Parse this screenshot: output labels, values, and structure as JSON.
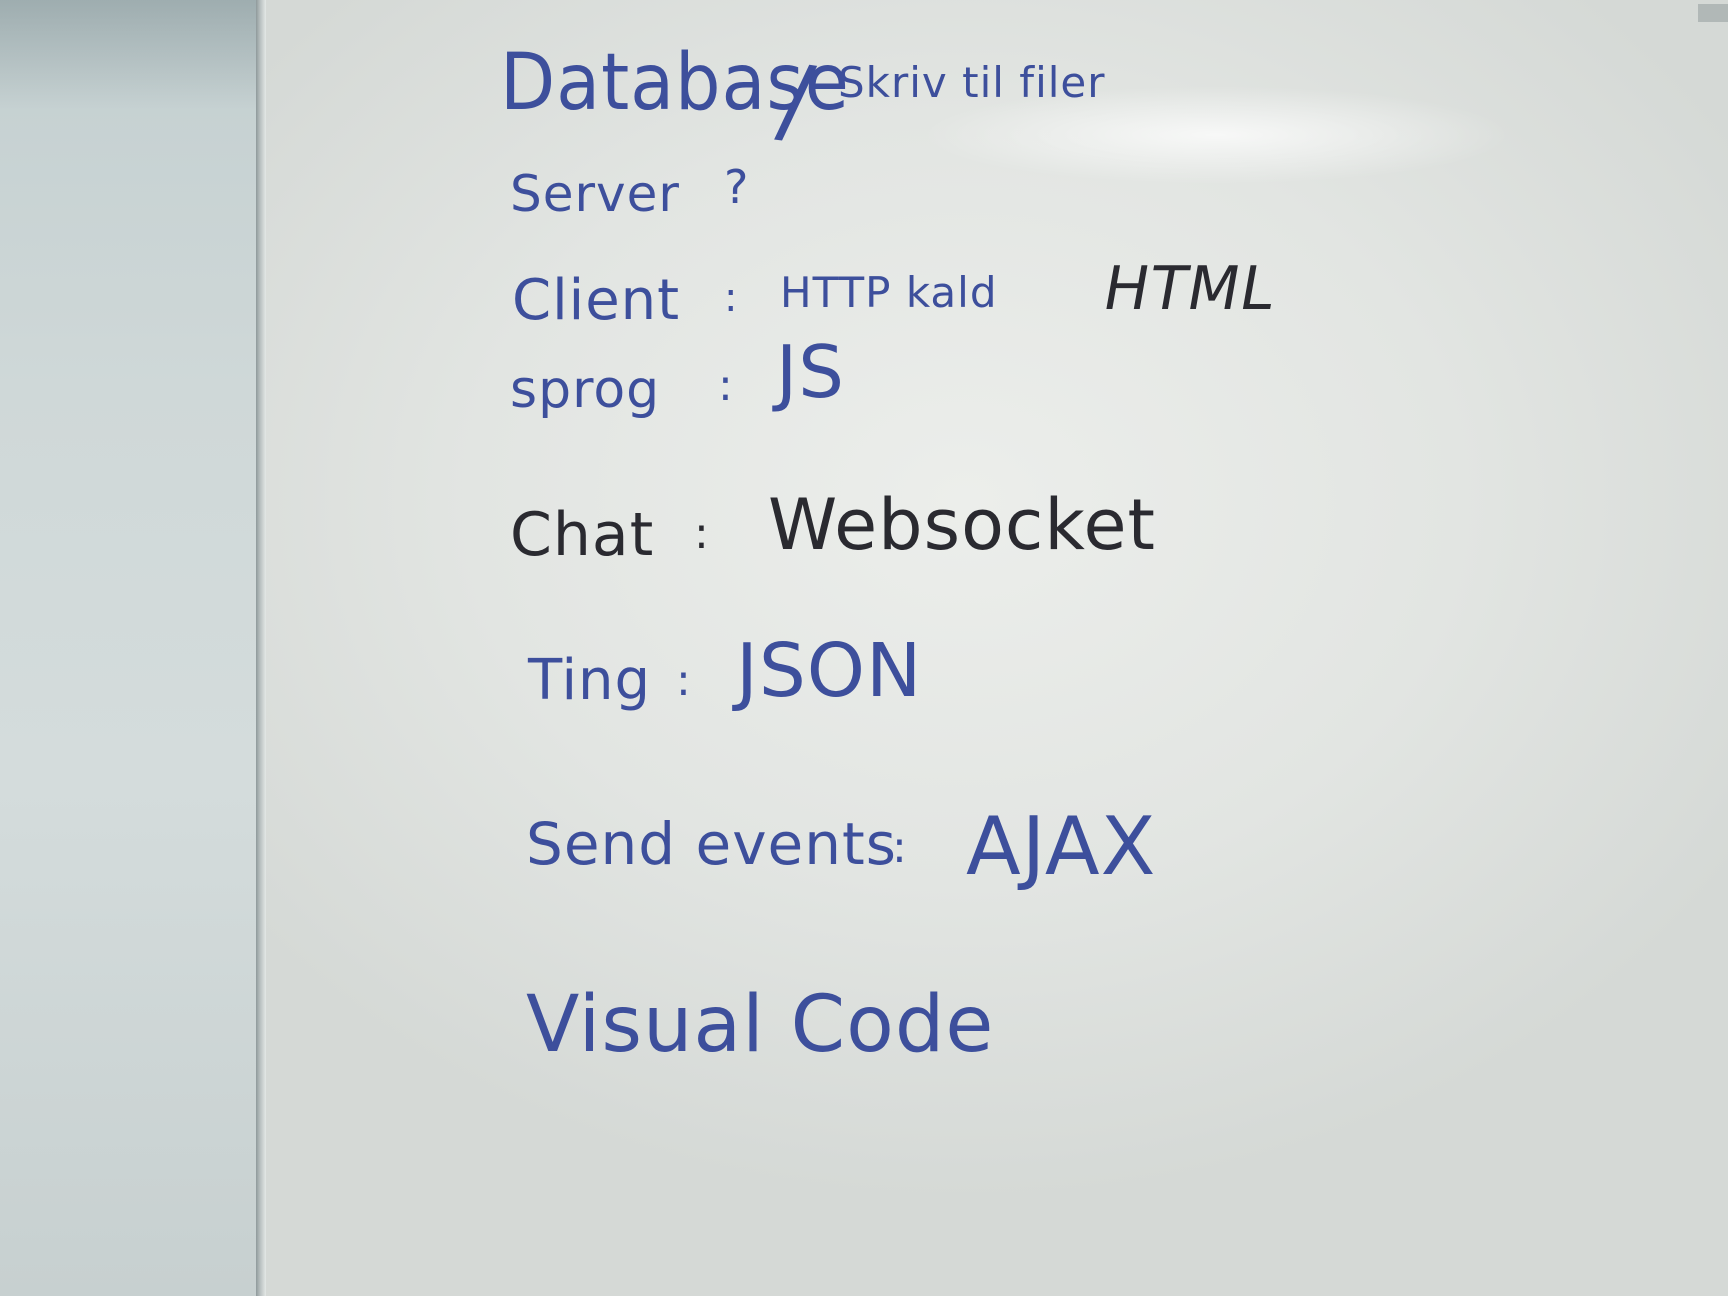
{
  "whiteboard": {
    "line1": {
      "main": "Database",
      "slash": "/",
      "sub": "Skriv til filer"
    },
    "line2": {
      "label": "Server",
      "value": "?"
    },
    "line3": {
      "label": "Client",
      "sep": ":",
      "value": "HTTP kald",
      "extra": "HTML"
    },
    "line4": {
      "label": "sprog",
      "sep": ":",
      "value": "JS"
    },
    "line5": {
      "label": "Chat",
      "sep": ":",
      "value": "Websocket"
    },
    "line6": {
      "label": "Ting",
      "sep": ":",
      "value": "JSON"
    },
    "line7": {
      "label": "Send events",
      "sep": ":",
      "value": "AJAX"
    },
    "line8": {
      "label": "Visual Code"
    }
  },
  "colors": {
    "blue_marker": "#3d4f9c",
    "black_marker": "#2a2a30",
    "board": "#e4e7e4"
  }
}
